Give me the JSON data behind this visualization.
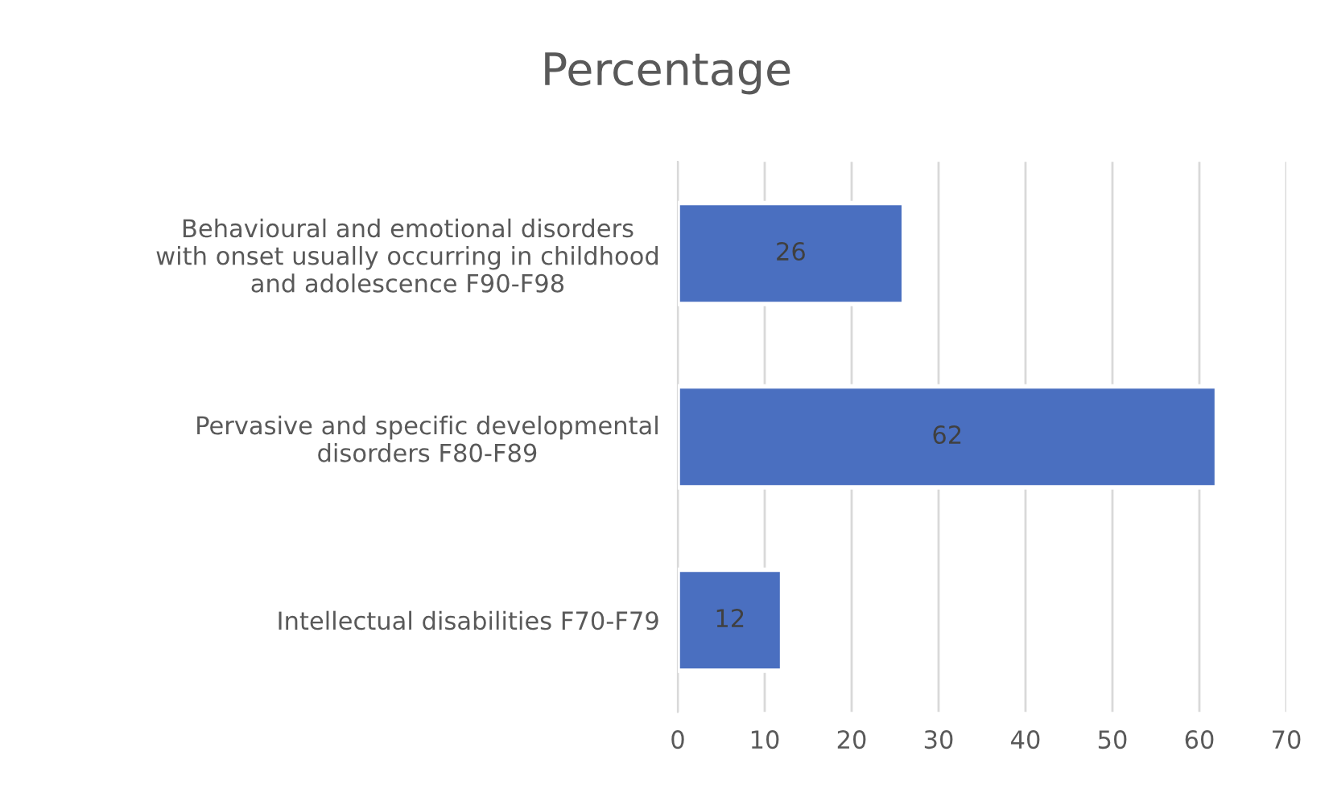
{
  "chart_data": {
    "type": "bar",
    "orientation": "horizontal",
    "title": "Percentage",
    "categories": [
      "Behavioural and emotional disorders\nwith onset usually occurring in childhood\nand adolescence F90-F98",
      "Pervasive and specific developmental\ndisorders F80-F89",
      "Intellectual disabilities F70-F79"
    ],
    "values": [
      26,
      62,
      12
    ],
    "color": "#4a6fc0",
    "xlim": [
      0,
      70
    ],
    "xticks": [
      0,
      10,
      20,
      30,
      40,
      50,
      60,
      70
    ],
    "grid": "x",
    "data_labels": true,
    "legend": false
  }
}
